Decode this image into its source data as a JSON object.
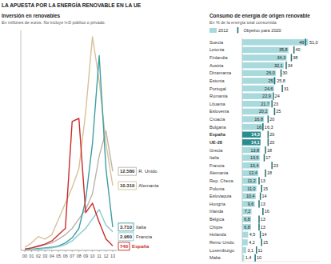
{
  "header": {
    "title": "LA APUESTA POR LA ENERGÍA RENOVABLE EN LA UE"
  },
  "chart_data": [
    {
      "type": "line",
      "title": "Inversión en renovables",
      "subtitle": "En millones de euros. No incluye I+D público o privado.",
      "categories": [
        "00",
        "01",
        "02",
        "03",
        "04",
        "05",
        "06",
        "07",
        "08",
        "09",
        "10",
        "11",
        "12",
        "13"
      ],
      "ylim": [
        0,
        35000
      ],
      "tick_labels": "x",
      "data_labels": true,
      "series": [
        {
          "name": "R. Unido",
          "color": "#b9b4ab",
          "values": [
            200,
            400,
            600,
            900,
            1200,
            1800,
            2500,
            3500,
            5000,
            6500,
            9000,
            15000,
            19000,
            12580
          ],
          "value_labels": [
            null,
            null,
            null,
            null,
            null,
            null,
            null,
            null,
            null,
            null,
            null,
            null,
            null,
            "12.580"
          ]
        },
        {
          "name": "Alemania",
          "color": "#d8c196",
          "values": [
            500,
            1200,
            2200,
            1800,
            2500,
            5000,
            7500,
            10000,
            13000,
            22000,
            34000,
            27000,
            17000,
            10310
          ],
          "value_labels": [
            null,
            null,
            null,
            null,
            null,
            null,
            null,
            null,
            null,
            null,
            null,
            null,
            null,
            "10.310"
          ]
        },
        {
          "name": "Italia",
          "color": "#3f9ea3",
          "values": [
            100,
            200,
            300,
            400,
            500,
            700,
            1200,
            2000,
            3500,
            8000,
            17000,
            31000,
            13000,
            3710
          ],
          "value_labels": [
            null,
            null,
            null,
            null,
            null,
            null,
            null,
            null,
            null,
            null,
            null,
            null,
            null,
            "3.710"
          ]
        },
        {
          "name": "Francia",
          "color": "#8cc9d0",
          "values": [
            100,
            150,
            200,
            300,
            400,
            600,
            900,
            1500,
            2500,
            3500,
            5000,
            6500,
            4000,
            2960
          ],
          "value_labels": [
            null,
            null,
            null,
            null,
            null,
            null,
            null,
            null,
            null,
            null,
            null,
            null,
            null,
            "2.960"
          ]
        },
        {
          "name": "España",
          "color": "#cc2a2a",
          "values": [
            200,
            400,
            700,
            1000,
            1500,
            2500,
            3500,
            20500,
            21000,
            6000,
            7500,
            4500,
            1800,
            740
          ],
          "value_labels": [
            null,
            null,
            null,
            null,
            null,
            null,
            null,
            null,
            null,
            null,
            null,
            null,
            null,
            "740"
          ]
        }
      ]
    },
    {
      "type": "bar",
      "orientation": "horizontal",
      "title": "Consumo de energía de origen renovable",
      "subtitle": "En % de la energía total consumida",
      "legend": "top",
      "tick_labels": false,
      "data_labels": true,
      "xlim": [
        0,
        60
      ],
      "categories": [
        "Suecia",
        "Letonia",
        "Finlandia",
        "Austria",
        "Dinamarca",
        "Estonia",
        "Portugal",
        "Rumanía",
        "Lituania",
        "Eslovenia",
        "Croacia",
        "Bulgaria",
        "España",
        "UE-28",
        "Grecia",
        "Italia",
        "Francia",
        "Alemania",
        "Rep. Checa",
        "Polonia",
        "Eslovaquia",
        "Hungría",
        "Irlanda",
        "Bélgica",
        "Chipre",
        "Holanda",
        "Reino Unido",
        "Luxemburgo",
        "Malta"
      ],
      "series": [
        {
          "name": "2012",
          "type": "bar",
          "values": [
            51.0,
            35.8,
            34.3,
            32.1,
            26.0,
            25.8,
            24.6,
            22.9,
            21.7,
            20.2,
            16.8,
            16.3,
            14.3,
            14.1,
            13.8,
            13.5,
            13.4,
            12.4,
            11.2,
            11.0,
            10.4,
            9.6,
            7.2,
            6.8,
            6.8,
            4.5,
            4.2,
            3.1,
            1.4
          ],
          "value_labels": [
            "51,0",
            "35,8",
            "34,3",
            "32,1",
            "26,0",
            "25,8",
            "24,6",
            "22,9",
            "21,7",
            "20,2",
            "16,8",
            "16,3",
            "14,3",
            "14,1",
            "13,8",
            "13,5",
            "13,4",
            "12,4",
            "11,2",
            "11,0",
            "10,4",
            "9,6",
            "7,2",
            "6,8",
            "6,8",
            "4,5",
            "4,2",
            "3,1",
            "1,4"
          ],
          "colors": [
            "#a8d9dc",
            "#a8d9dc",
            "#a8d9dc",
            "#a8d9dc",
            "#a8d9dc",
            "#a8d9dc",
            "#a8d9dc",
            "#a8d9dc",
            "#a8d9dc",
            "#a8d9dc",
            "#a8d9dc",
            "#a8d9dc",
            "#2b8c90",
            "#2b8c90",
            "#a8d9dc",
            "#a8d9dc",
            "#a8d9dc",
            "#a8d9dc",
            "#a8d9dc",
            "#a8d9dc",
            "#a8d9dc",
            "#a8d9dc",
            "#a8d9dc",
            "#a8d9dc",
            "#a8d9dc",
            "#a8d9dc",
            "#a8d9dc",
            "#a8d9dc",
            "#a8d9dc"
          ]
        },
        {
          "name": "Objetivo para 2020",
          "type": "tick",
          "color": "#1f6f73",
          "values": [
            49,
            40,
            38,
            34,
            30,
            25,
            31,
            24,
            23,
            25,
            20,
            16,
            20,
            20,
            18,
            17,
            23,
            18,
            13,
            15,
            14,
            13,
            16,
            13,
            13,
            14,
            15,
            11,
            10
          ]
        }
      ]
    }
  ]
}
